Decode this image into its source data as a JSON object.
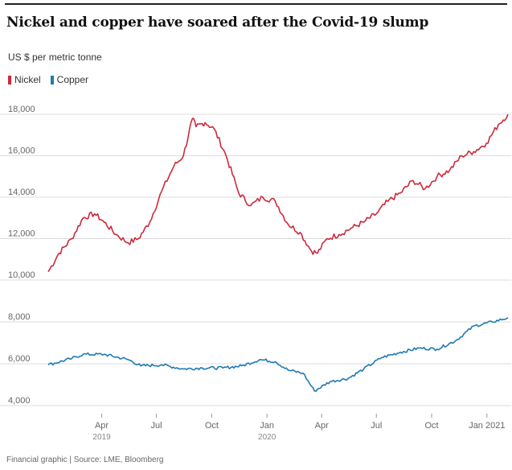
{
  "title": "Nickel and copper have soared after the Covid-19 slump",
  "subtitle": "US $ per metric tonne",
  "legend": [
    {
      "label": "Nickel",
      "color": "#cc2a3a"
    },
    {
      "label": "Copper",
      "color": "#1f7ab3"
    }
  ],
  "footer": "Financial graphic | Source: LME, Bloomberg",
  "colors": {
    "nickel": "#cc2a3a",
    "copper": "#1f7ab3",
    "grid": "#dddddd"
  },
  "chart_data": [
    {
      "type": "line",
      "series": [
        {
          "name": "Nickel",
          "x": [
            "2019-01-02",
            "2019-01-20",
            "2019-02-10",
            "2019-03-01",
            "2019-03-20",
            "2019-04-05",
            "2019-04-25",
            "2019-05-15",
            "2019-06-01",
            "2019-06-20",
            "2019-07-10",
            "2019-07-30",
            "2019-08-15",
            "2019-08-30",
            "2019-09-05",
            "2019-09-20",
            "2019-10-05",
            "2019-10-25",
            "2019-11-15",
            "2019-12-05",
            "2019-12-25",
            "2020-01-15",
            "2020-02-05",
            "2020-02-25",
            "2020-03-15",
            "2020-03-25",
            "2020-04-10",
            "2020-04-30",
            "2020-05-20",
            "2020-06-10",
            "2020-07-01",
            "2020-07-20",
            "2020-08-10",
            "2020-08-31",
            "2020-09-20",
            "2020-10-10",
            "2020-10-31",
            "2020-11-20",
            "2020-12-10",
            "2020-12-31",
            "2021-01-20",
            "2021-02-05"
          ],
          "values": [
            10400,
            11300,
            12000,
            13000,
            13200,
            12800,
            12200,
            11800,
            12000,
            12800,
            14300,
            15500,
            16000,
            17800,
            17400,
            17600,
            17300,
            16000,
            14200,
            13600,
            14000,
            13800,
            12700,
            12300,
            11400,
            11300,
            12000,
            12200,
            12500,
            12800,
            13200,
            13800,
            14200,
            14800,
            14400,
            15000,
            15300,
            16000,
            16200,
            16600,
            17500,
            18000
          ]
        }
      ],
      "ylim": [
        10000,
        18000
      ],
      "yticks": [
        "10,000",
        "12,000",
        "14,000",
        "16,000",
        "18,000"
      ]
    },
    {
      "type": "line",
      "series": [
        {
          "name": "Copper",
          "x": [
            "2019-01-02",
            "2019-02-10",
            "2019-03-01",
            "2019-04-05",
            "2019-05-15",
            "2019-06-05",
            "2019-07-10",
            "2019-08-15",
            "2019-09-15",
            "2019-10-20",
            "2019-11-20",
            "2019-12-20",
            "2020-01-15",
            "2020-02-05",
            "2020-03-01",
            "2020-03-20",
            "2020-04-15",
            "2020-05-15",
            "2020-06-10",
            "2020-07-10",
            "2020-08-10",
            "2020-09-10",
            "2020-10-10",
            "2020-11-10",
            "2020-12-10",
            "2021-01-10",
            "2021-02-05"
          ],
          "values": [
            5950,
            6250,
            6450,
            6450,
            6200,
            5900,
            5950,
            5750,
            5800,
            5800,
            5900,
            6200,
            6100,
            5700,
            5550,
            4700,
            5150,
            5300,
            5750,
            6300,
            6550,
            6750,
            6700,
            7100,
            7800,
            8000,
            8200
          ]
        }
      ],
      "ylim": [
        4000,
        8000
      ],
      "yticks": [
        "4,000",
        "6,000",
        "8,000"
      ]
    }
  ],
  "x_axis": {
    "ticks": [
      {
        "date": "2019-04-01",
        "label": "Apr",
        "sub": "2019"
      },
      {
        "date": "2019-07-01",
        "label": "Jul",
        "sub": ""
      },
      {
        "date": "2019-10-01",
        "label": "Oct",
        "sub": ""
      },
      {
        "date": "2020-01-01",
        "label": "Jan",
        "sub": "2020"
      },
      {
        "date": "2020-04-01",
        "label": "Apr",
        "sub": ""
      },
      {
        "date": "2020-07-01",
        "label": "Jul",
        "sub": ""
      },
      {
        "date": "2020-10-01",
        "label": "Oct",
        "sub": ""
      },
      {
        "date": "2021-01-01",
        "label": "Jan 2021",
        "sub": ""
      }
    ]
  }
}
